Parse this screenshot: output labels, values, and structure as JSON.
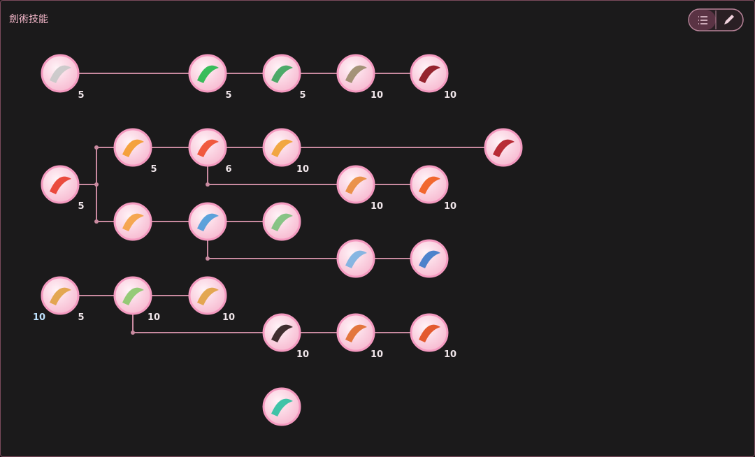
{
  "header": {
    "title": "劍術技能"
  },
  "nodes": [
    {
      "level": 5
    },
    {
      "level": 5
    },
    {
      "level": 5
    },
    {
      "level": 10
    },
    {
      "level": 10
    },
    {
      "level": 5
    },
    {
      "level": 6
    },
    {
      "level": 10
    },
    {},
    {
      "level": 5
    },
    {
      "level": 10
    },
    {
      "level": 10
    },
    {},
    {},
    {},
    {},
    {},
    {
      "level": 5,
      "bonus": 10
    },
    {
      "level": 10
    },
    {
      "level": 10
    },
    {
      "level": 10
    },
    {
      "level": 10
    },
    {
      "level": 10
    },
    {}
  ]
}
